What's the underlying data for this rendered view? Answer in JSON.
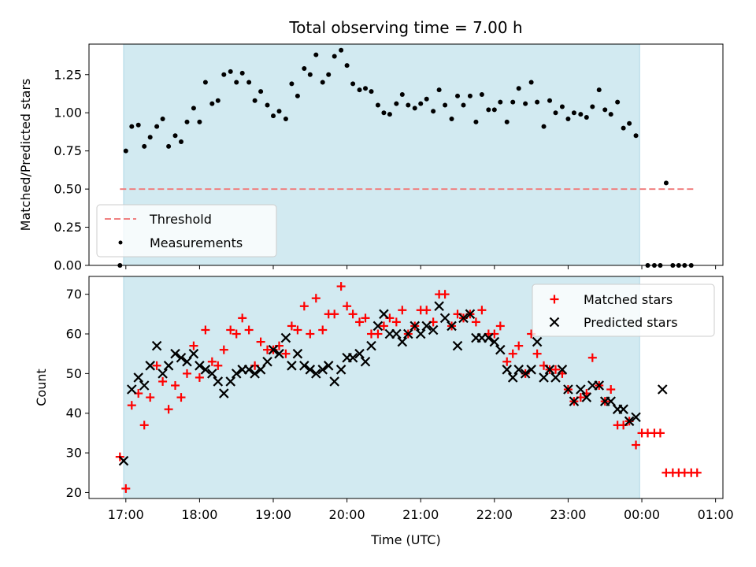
{
  "chart_data": [
    {
      "type": "scatter",
      "title": "Total observing time = 7.00 h",
      "ylabel": "Matched/Predicted stars",
      "xlabel": "",
      "ylim": [
        0,
        1.45
      ],
      "yticks": [
        "0.00",
        "0.25",
        "0.50",
        "0.75",
        "1.00",
        "1.25"
      ],
      "ytick_values": [
        0,
        0.25,
        0.5,
        0.75,
        1.0,
        1.25
      ],
      "xlim_hours": [
        16.5,
        25.1
      ],
      "shaded_span_hours": [
        16.97,
        23.97
      ],
      "shade_color": "#add8e6",
      "legend_position": "lower left",
      "series": [
        {
          "name": "Threshold",
          "kind": "dashed-line",
          "color": "#f08080",
          "x": [
            16.92,
            24.72
          ],
          "y": [
            0.5,
            0.5
          ]
        },
        {
          "name": "Measurements",
          "kind": "dots",
          "color": "#000000",
          "x": [
            16.92,
            17.0,
            17.08,
            17.17,
            17.25,
            17.33,
            17.42,
            17.5,
            17.58,
            17.67,
            17.75,
            17.83,
            17.92,
            18.0,
            18.08,
            18.17,
            18.25,
            18.33,
            18.42,
            18.5,
            18.58,
            18.67,
            18.75,
            18.83,
            18.92,
            19.0,
            19.08,
            19.17,
            19.25,
            19.33,
            19.42,
            19.5,
            19.58,
            19.67,
            19.75,
            19.83,
            19.92,
            20.0,
            20.08,
            20.17,
            20.25,
            20.33,
            20.42,
            20.5,
            20.58,
            20.67,
            20.75,
            20.83,
            20.92,
            21.0,
            21.08,
            21.17,
            21.25,
            21.33,
            21.42,
            21.5,
            21.58,
            21.67,
            21.75,
            21.83,
            21.92,
            22.0,
            22.08,
            22.17,
            22.25,
            22.33,
            22.42,
            22.5,
            22.58,
            22.67,
            22.75,
            22.83,
            22.92,
            23.0,
            23.08,
            23.17,
            23.25,
            23.33,
            23.42,
            23.5,
            23.58,
            23.67,
            23.75,
            23.83,
            23.92,
            24.08,
            24.17,
            24.25,
            24.33,
            24.42,
            24.5,
            24.58,
            24.67
          ],
          "y": [
            0.0,
            0.75,
            0.91,
            0.92,
            0.78,
            0.84,
            0.91,
            0.96,
            0.78,
            0.85,
            0.81,
            0.94,
            1.03,
            0.94,
            1.2,
            1.06,
            1.08,
            1.25,
            1.27,
            1.2,
            1.26,
            1.2,
            1.08,
            1.14,
            1.05,
            0.98,
            1.01,
            0.96,
            1.19,
            1.11,
            1.29,
            1.25,
            1.38,
            1.2,
            1.25,
            1.37,
            1.41,
            1.31,
            1.19,
            1.15,
            1.16,
            1.14,
            1.05,
            1.0,
            0.99,
            1.06,
            1.12,
            1.05,
            1.03,
            1.06,
            1.09,
            1.01,
            1.15,
            1.05,
            0.96,
            1.11,
            1.05,
            1.11,
            0.94,
            1.12,
            1.02,
            1.02,
            1.07,
            0.94,
            1.07,
            1.16,
            1.06,
            1.2,
            1.07,
            0.91,
            1.08,
            1.0,
            1.04,
            0.96,
            1.0,
            0.99,
            0.97,
            1.04,
            1.15,
            1.02,
            0.99,
            1.07,
            0.9,
            0.93,
            0.85,
            0.0,
            0.0,
            0.0,
            0.54,
            0.0,
            0.0,
            0.0,
            0.0
          ]
        }
      ]
    },
    {
      "type": "scatter",
      "title": "",
      "xlabel": "Time (UTC)",
      "ylabel": "Count",
      "ylim": [
        18.5,
        74.5
      ],
      "yticks": [
        "20",
        "30",
        "40",
        "50",
        "60",
        "70"
      ],
      "ytick_values": [
        20,
        30,
        40,
        50,
        60,
        70
      ],
      "xlim_hours": [
        16.5,
        25.1
      ],
      "xticks": [
        "17:00",
        "18:00",
        "19:00",
        "20:00",
        "21:00",
        "22:00",
        "23:00",
        "00:00",
        "01:00"
      ],
      "xtick_values": [
        17,
        18,
        19,
        20,
        21,
        22,
        23,
        24,
        25
      ],
      "shaded_span_hours": [
        16.97,
        23.97
      ],
      "shade_color": "#add8e6",
      "legend_position": "upper right",
      "series": [
        {
          "name": "Matched stars",
          "marker": "plus",
          "color": "#ff0000",
          "x": [
            16.92,
            17.0,
            17.08,
            17.17,
            17.25,
            17.33,
            17.42,
            17.5,
            17.58,
            17.67,
            17.75,
            17.83,
            17.92,
            18.0,
            18.08,
            18.17,
            18.25,
            18.33,
            18.42,
            18.5,
            18.58,
            18.67,
            18.75,
            18.83,
            18.92,
            19.0,
            19.08,
            19.17,
            19.25,
            19.33,
            19.42,
            19.5,
            19.58,
            19.67,
            19.75,
            19.83,
            19.92,
            20.0,
            20.08,
            20.17,
            20.25,
            20.33,
            20.42,
            20.5,
            20.58,
            20.67,
            20.75,
            20.83,
            20.92,
            21.0,
            21.08,
            21.17,
            21.25,
            21.33,
            21.42,
            21.5,
            21.58,
            21.67,
            21.75,
            21.83,
            21.92,
            22.0,
            22.08,
            22.17,
            22.25,
            22.33,
            22.42,
            22.5,
            22.58,
            22.67,
            22.75,
            22.83,
            22.92,
            23.0,
            23.08,
            23.17,
            23.25,
            23.33,
            23.42,
            23.5,
            23.58,
            23.67,
            23.75,
            23.83,
            23.92,
            24.0,
            24.08,
            24.17,
            24.25,
            24.33,
            24.42,
            24.5,
            24.58,
            24.67,
            24.75
          ],
          "y": [
            29,
            21,
            42,
            45,
            37,
            44,
            52,
            48,
            41,
            47,
            44,
            50,
            57,
            49,
            61,
            53,
            52,
            56,
            61,
            60,
            64,
            61,
            52,
            58,
            56,
            56,
            57,
            55,
            62,
            61,
            67,
            60,
            69,
            61,
            65,
            65,
            72,
            67,
            65,
            63,
            64,
            60,
            60,
            62,
            64,
            63,
            66,
            60,
            62,
            66,
            66,
            63,
            70,
            70,
            62,
            65,
            64,
            65,
            63,
            66,
            60,
            60,
            62,
            53,
            55,
            57,
            50,
            60,
            55,
            52,
            51,
            51,
            50,
            46,
            43,
            44,
            45,
            54,
            47,
            43,
            46,
            37,
            37,
            38,
            32,
            35,
            35,
            35,
            35,
            25,
            25,
            25,
            25,
            25,
            25
          ]
        },
        {
          "name": "Predicted stars",
          "marker": "x",
          "color": "#000000",
          "x": [
            16.97,
            17.08,
            17.17,
            17.25,
            17.33,
            17.42,
            17.5,
            17.58,
            17.67,
            17.75,
            17.83,
            17.92,
            18.0,
            18.08,
            18.17,
            18.25,
            18.33,
            18.42,
            18.5,
            18.58,
            18.67,
            18.75,
            18.83,
            18.92,
            19.0,
            19.08,
            19.17,
            19.25,
            19.33,
            19.42,
            19.5,
            19.58,
            19.67,
            19.75,
            19.83,
            19.92,
            20.0,
            20.08,
            20.17,
            20.25,
            20.33,
            20.42,
            20.5,
            20.58,
            20.67,
            20.75,
            20.83,
            20.92,
            21.0,
            21.08,
            21.17,
            21.25,
            21.33,
            21.42,
            21.5,
            21.58,
            21.67,
            21.75,
            21.83,
            21.92,
            22.0,
            22.08,
            22.17,
            22.25,
            22.33,
            22.42,
            22.5,
            22.58,
            22.67,
            22.75,
            22.83,
            22.92,
            23.0,
            23.08,
            23.17,
            23.25,
            23.33,
            23.42,
            23.5,
            23.58,
            23.67,
            23.75,
            23.83,
            23.92,
            24.28
          ],
          "y": [
            28,
            46,
            49,
            47,
            52,
            57,
            50,
            52,
            55,
            54,
            53,
            55,
            52,
            51,
            50,
            48,
            45,
            48,
            50,
            51,
            51,
            50,
            51,
            53,
            56,
            55,
            59,
            52,
            55,
            52,
            51,
            50,
            51,
            52,
            48,
            51,
            54,
            54,
            55,
            53,
            57,
            62,
            65,
            60,
            60,
            58,
            60,
            62,
            60,
            62,
            61,
            67,
            64,
            62,
            57,
            64,
            65,
            59,
            59,
            59,
            58,
            56,
            51,
            49,
            51,
            50,
            51,
            58,
            49,
            51,
            49,
            51,
            46,
            43,
            46,
            44,
            47,
            47,
            43,
            43,
            41,
            41,
            38,
            39,
            46
          ]
        }
      ]
    }
  ]
}
